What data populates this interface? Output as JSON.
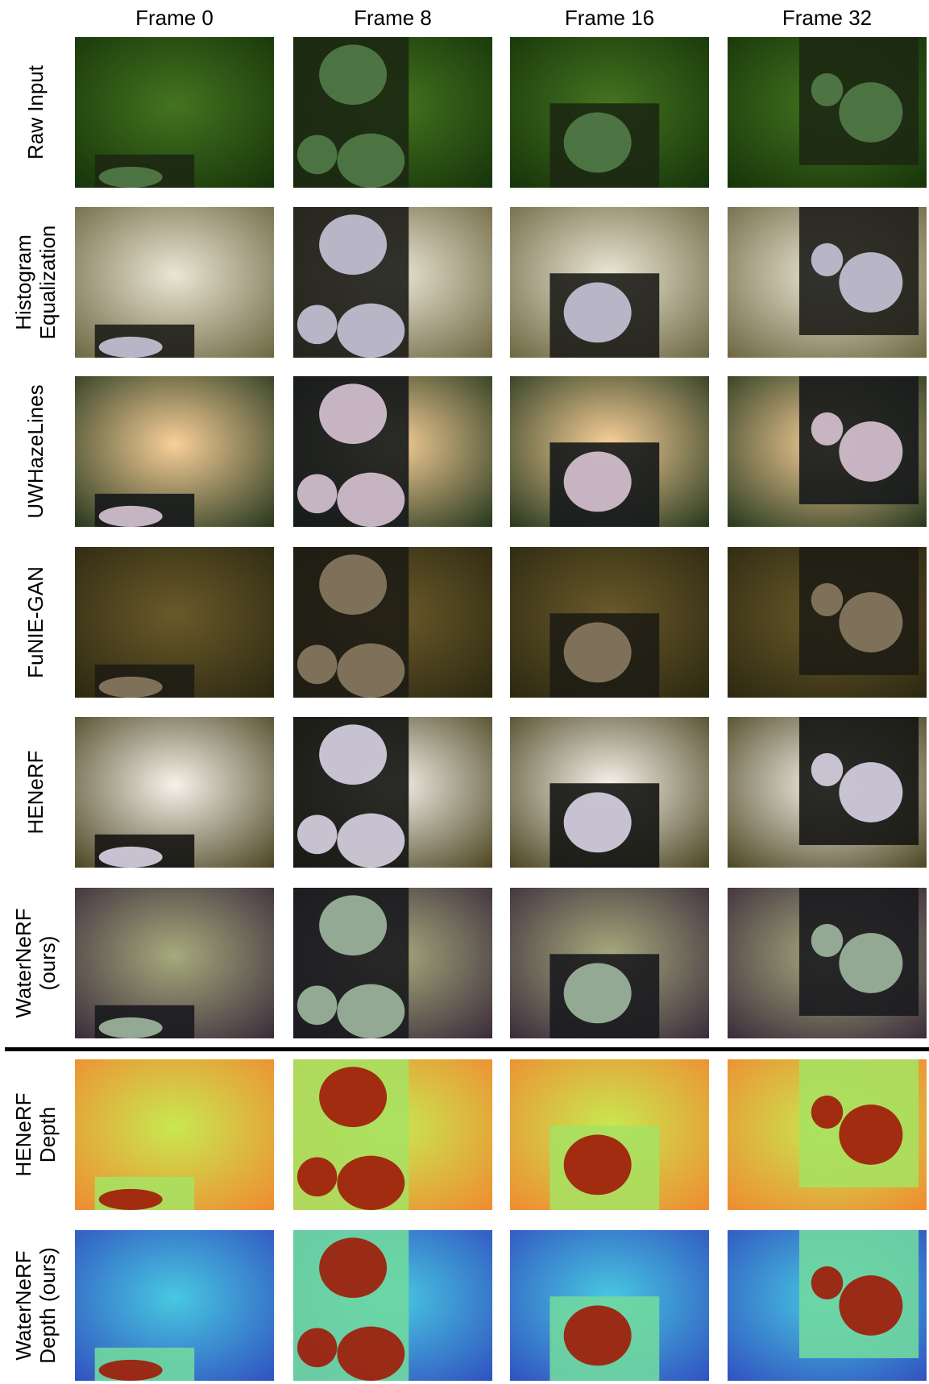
{
  "header": {
    "columns": [
      "Frame 0",
      "Frame 8",
      "Frame 16",
      "Frame 32"
    ]
  },
  "rows": [
    {
      "label": [
        "Raw Input"
      ]
    },
    {
      "label": [
        "Histogram",
        "Equalization"
      ]
    },
    {
      "label": [
        "UWHazeLines"
      ]
    },
    {
      "label": [
        "FuNIE-GAN"
      ]
    },
    {
      "label": [
        "HENeRF"
      ]
    },
    {
      "label": [
        "WaterNeRF",
        "(ours)"
      ]
    },
    {
      "label": [
        "HENeRF",
        "Depth"
      ]
    },
    {
      "label": [
        "WaterNeRF",
        "Depth (ours)"
      ]
    }
  ]
}
